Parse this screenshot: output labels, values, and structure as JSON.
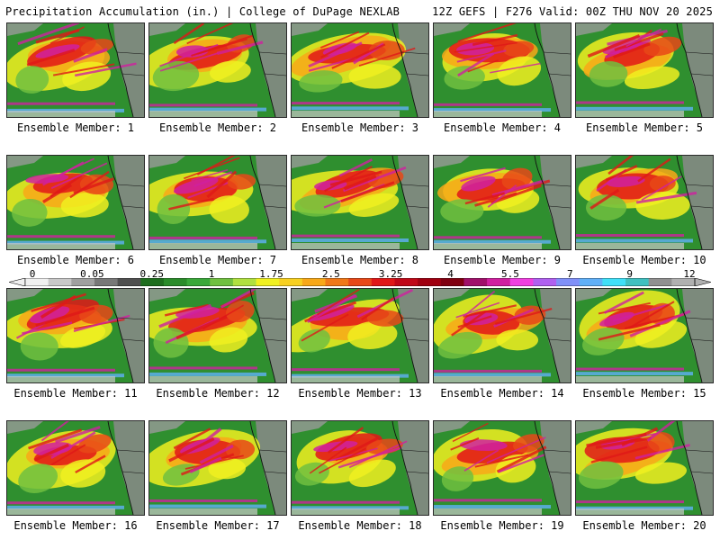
{
  "header": {
    "title": "Precipitation Accumulation (in.) | College of DuPage NEXLAB",
    "run_info": "12Z GEFS | F276 Valid: 00Z THU NOV 20 2025"
  },
  "label_prefix": "Ensemble Member: ",
  "members": [
    "1",
    "2",
    "3",
    "4",
    "5",
    "6",
    "7",
    "8",
    "9",
    "10",
    "11",
    "12",
    "13",
    "14",
    "15",
    "16",
    "17",
    "18",
    "19",
    "20"
  ],
  "colorbar": {
    "tick_labels": [
      "0",
      "0.05",
      "0.25",
      "1",
      "1.75",
      "2.5",
      "3.25",
      "4",
      "5.5",
      "7",
      "9",
      "12"
    ],
    "colors": [
      "#f0f0f0",
      "#c8c8c8",
      "#a0a0a0",
      "#787878",
      "#505050",
      "#1e6e1e",
      "#2a8c2a",
      "#3aa83a",
      "#70c040",
      "#b0e040",
      "#f0f020",
      "#f8d020",
      "#f8a818",
      "#f07818",
      "#e84818",
      "#e01818",
      "#c00818",
      "#a00010",
      "#800010",
      "#a0106a",
      "#d020a0",
      "#f040e0",
      "#b060f0",
      "#8090f8",
      "#60b0f8",
      "#40e0f8",
      "#40c0c0",
      "#909090",
      "#b0b0b0"
    ],
    "palette": {
      "ocean_green": "#2f8f2f",
      "wet_yellow": "#f0f020",
      "heavy_red": "#e01818",
      "extreme_magenta": "#d020a0",
      "light_blue": "#60b0f8",
      "land_gray": "#a8a8a8"
    }
  }
}
